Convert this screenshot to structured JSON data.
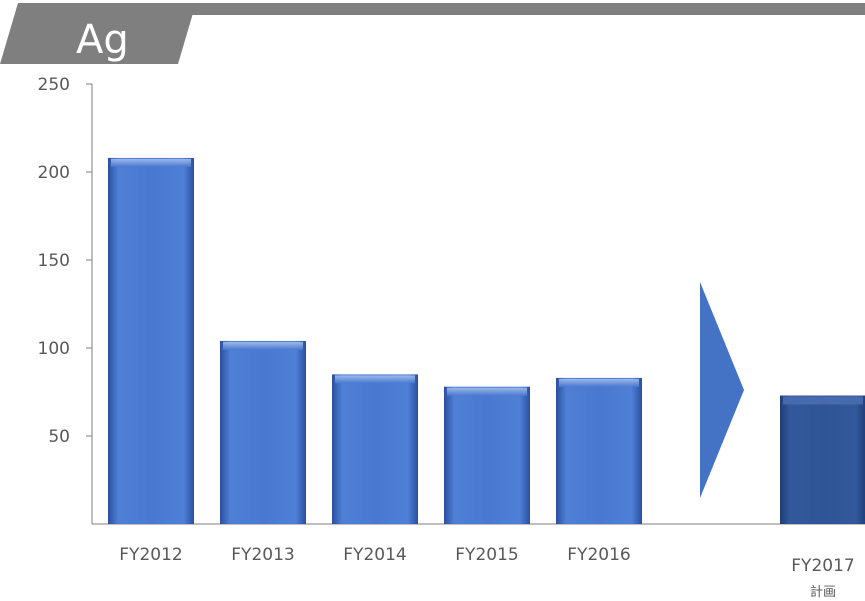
{
  "title": "Ag",
  "colors": {
    "header_band": "#7f7f7f",
    "bar_main": "#4a78d0",
    "bar_plan": "#2f5597",
    "arrow": "#4472c4",
    "axis": "#7f7f7f",
    "text": "#595959"
  },
  "chart_data": {
    "type": "bar",
    "title": "Ag",
    "categories": [
      "FY2012",
      "FY2013",
      "FY2014",
      "FY2015",
      "FY2016",
      "FY2017"
    ],
    "category_sublabels": [
      "",
      "",
      "",
      "",
      "",
      "計画"
    ],
    "values": [
      208,
      104,
      85,
      78,
      83,
      73
    ],
    "ylim": [
      0,
      250
    ],
    "yticks": [
      50,
      100,
      150,
      200,
      250
    ],
    "xlabel": "",
    "ylabel": "",
    "grid": false,
    "legend": "none",
    "separator": "right-pointing arrow between FY2016 and FY2017",
    "highlighted_category": "FY2017"
  }
}
